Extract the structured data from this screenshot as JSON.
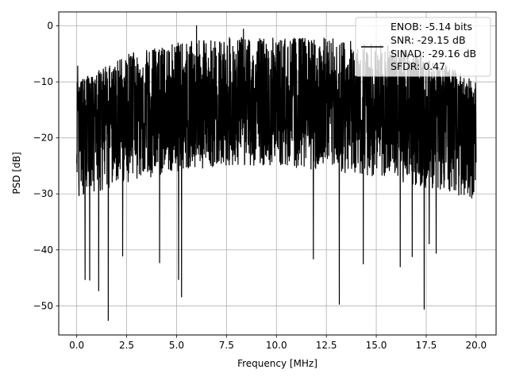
{
  "chart_data": {
    "type": "line",
    "title": "",
    "xlabel": "Frequency [MHz]",
    "ylabel": "PSD [dB]",
    "xlim": [
      -0.9,
      21.0
    ],
    "ylim": [
      -55.2,
      2.5
    ],
    "xticks": [
      0.0,
      2.5,
      5.0,
      7.5,
      10.0,
      12.5,
      15.0,
      17.5,
      20.0
    ],
    "xtick_labels": [
      "0.0",
      "2.5",
      "5.0",
      "7.5",
      "10.0",
      "12.5",
      "15.0",
      "17.5",
      "20.0"
    ],
    "yticks": [
      0,
      -10,
      -20,
      -30,
      -40,
      -50
    ],
    "ytick_labels": [
      "0",
      "−10",
      "−20",
      "−30",
      "−40",
      "−50"
    ],
    "grid": true,
    "legend_position": "top-right",
    "line_color": "#000000",
    "noise_floor_envelope": {
      "x": [
        0.0,
        2.5,
        5.0,
        7.5,
        10.0,
        12.5,
        15.0,
        17.5,
        20.0
      ],
      "upper": [
        -10,
        -5,
        -3,
        -2,
        -2,
        -2,
        -3,
        -5,
        -10
      ],
      "median": [
        -17,
        -16,
        -16,
        -16,
        -16,
        -16,
        -16,
        -16,
        -17
      ],
      "lower": [
        -31,
        -28,
        -26,
        -25,
        -25,
        -26,
        -27,
        -29,
        -31
      ]
    },
    "downward_spikes": [
      {
        "x": 0.42,
        "y": -45.3
      },
      {
        "x": 0.65,
        "y": -45.4
      },
      {
        "x": 1.1,
        "y": -47.3
      },
      {
        "x": 1.58,
        "y": -52.6
      },
      {
        "x": 2.3,
        "y": -41.1
      },
      {
        "x": 4.15,
        "y": -42.3
      },
      {
        "x": 5.1,
        "y": -45.3
      },
      {
        "x": 5.25,
        "y": -48.4
      },
      {
        "x": 11.85,
        "y": -41.6
      },
      {
        "x": 13.15,
        "y": -49.7
      },
      {
        "x": 14.35,
        "y": -42.5
      },
      {
        "x": 16.2,
        "y": -43.0
      },
      {
        "x": 16.8,
        "y": -41.2
      },
      {
        "x": 17.4,
        "y": -50.6
      },
      {
        "x": 17.65,
        "y": -38.9
      },
      {
        "x": 18.0,
        "y": -40.6
      }
    ],
    "upward_peaks": [
      {
        "x": 0.05,
        "y": -7.1
      },
      {
        "x": 6.0,
        "y": 0.1
      },
      {
        "x": 8.35,
        "y": -0.5
      }
    ],
    "series": [
      {
        "legend_lines": [
          "ENOB: -5.14 bits",
          "SNR: -29.15 dB",
          "SINAD: -29.16 dB",
          "SFDR: 0.47"
        ]
      }
    ]
  }
}
